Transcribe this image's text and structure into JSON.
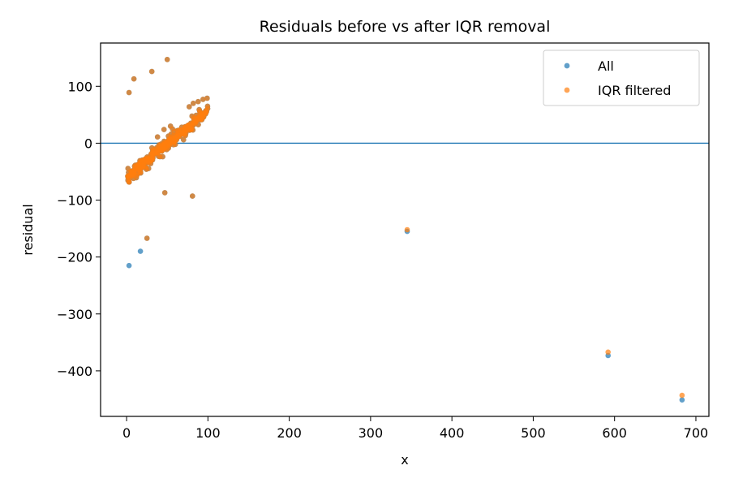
{
  "chart_data": {
    "type": "scatter",
    "title": "Residuals before vs after IQR removal",
    "xlabel": "x",
    "ylabel": "residual",
    "xlim": [
      -32,
      716
    ],
    "ylim": [
      -480,
      176
    ],
    "xticks": [
      0,
      100,
      200,
      300,
      400,
      500,
      600,
      700
    ],
    "yticks": [
      100,
      0,
      -100,
      -200,
      -300,
      -400
    ],
    "reference_line": {
      "y": 0,
      "color": "#1f77b4"
    },
    "legend": {
      "position": "top-right"
    },
    "series": [
      {
        "name": "All",
        "color": "#1f77b4",
        "cluster": {
          "x_range": [
            1,
            100
          ],
          "y_at_x0": -62,
          "slope": 1.2,
          "spread": 10,
          "n": 260
        },
        "points": [
          [
            3,
            89
          ],
          [
            9,
            113
          ],
          [
            31,
            126
          ],
          [
            50,
            147
          ],
          [
            47,
            -87
          ],
          [
            81,
            -93
          ],
          [
            25,
            -167
          ],
          [
            17,
            -190
          ],
          [
            3,
            -215
          ],
          [
            345,
            -155
          ],
          [
            592,
            -373
          ],
          [
            683,
            -451
          ],
          [
            38,
            11
          ],
          [
            46,
            24
          ],
          [
            77,
            64
          ],
          [
            82,
            70
          ],
          [
            88,
            73
          ],
          [
            94,
            77
          ],
          [
            99,
            79
          ],
          [
            60,
            -2
          ],
          [
            70,
            6
          ],
          [
            65,
            14
          ],
          [
            54,
            30
          ]
        ]
      },
      {
        "name": "IQR filtered",
        "color": "#ff7f0e",
        "cluster": {
          "x_range": [
            1,
            100
          ],
          "y_at_x0": -62,
          "slope": 1.2,
          "spread": 10,
          "n": 260
        },
        "points": [
          [
            3,
            89
          ],
          [
            9,
            113
          ],
          [
            31,
            126
          ],
          [
            50,
            147
          ],
          [
            47,
            -87
          ],
          [
            81,
            -93
          ],
          [
            25,
            -167
          ],
          [
            345,
            -152
          ],
          [
            592,
            -367
          ],
          [
            683,
            -443
          ],
          [
            38,
            11
          ],
          [
            46,
            24
          ],
          [
            77,
            64
          ],
          [
            82,
            70
          ],
          [
            88,
            73
          ],
          [
            94,
            77
          ],
          [
            99,
            79
          ],
          [
            60,
            -2
          ],
          [
            70,
            6
          ],
          [
            65,
            14
          ],
          [
            54,
            30
          ]
        ]
      }
    ]
  }
}
